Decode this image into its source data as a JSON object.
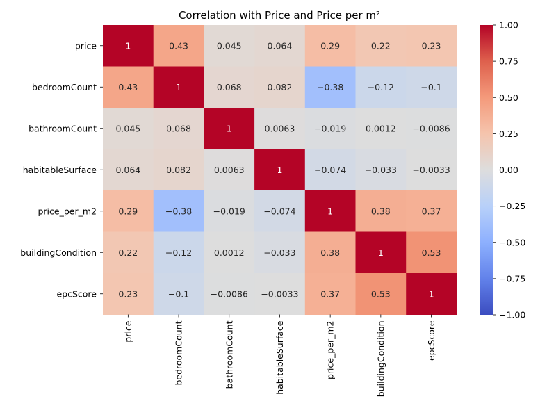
{
  "chart_data": {
    "type": "heatmap",
    "title": "Correlation with Price and Price per m²",
    "rows": [
      "price",
      "bedroomCount",
      "bathroomCount",
      "habitableSurface",
      "price_per_m2",
      "buildingCondition",
      "epcScore"
    ],
    "columns": [
      "price",
      "bedroomCount",
      "bathroomCount",
      "habitableSurface",
      "price_per_m2",
      "buildingCondition",
      "epcScore"
    ],
    "values": [
      [
        1,
        0.43,
        0.045,
        0.064,
        0.29,
        0.22,
        0.23
      ],
      [
        0.43,
        1,
        0.068,
        0.082,
        -0.38,
        -0.12,
        -0.1
      ],
      [
        0.045,
        0.068,
        1,
        0.0063,
        -0.019,
        0.0012,
        -0.0086
      ],
      [
        0.064,
        0.082,
        0.0063,
        1,
        -0.074,
        -0.033,
        -0.0033
      ],
      [
        0.29,
        -0.38,
        -0.019,
        -0.074,
        1,
        0.38,
        0.37
      ],
      [
        0.22,
        -0.12,
        0.0012,
        -0.033,
        0.38,
        1,
        0.53
      ],
      [
        0.23,
        -0.1,
        -0.0086,
        -0.0033,
        0.37,
        0.53,
        1
      ]
    ],
    "vmin": -1,
    "vmax": 1,
    "colormap": "coolwarm",
    "colorbar_ticks": [
      1.0,
      0.75,
      0.5,
      0.25,
      0.0,
      -0.25,
      -0.5,
      -0.75,
      -1.0
    ],
    "colorbar_tick_labels": [
      "1.00",
      "0.75",
      "0.50",
      "0.25",
      "0.00",
      "−0.25",
      "−0.50",
      "−0.75",
      "−1.00"
    ],
    "colors": {
      "cold": "#3b4cc0",
      "neutral": "#dddddd",
      "hot": "#b40426"
    }
  }
}
